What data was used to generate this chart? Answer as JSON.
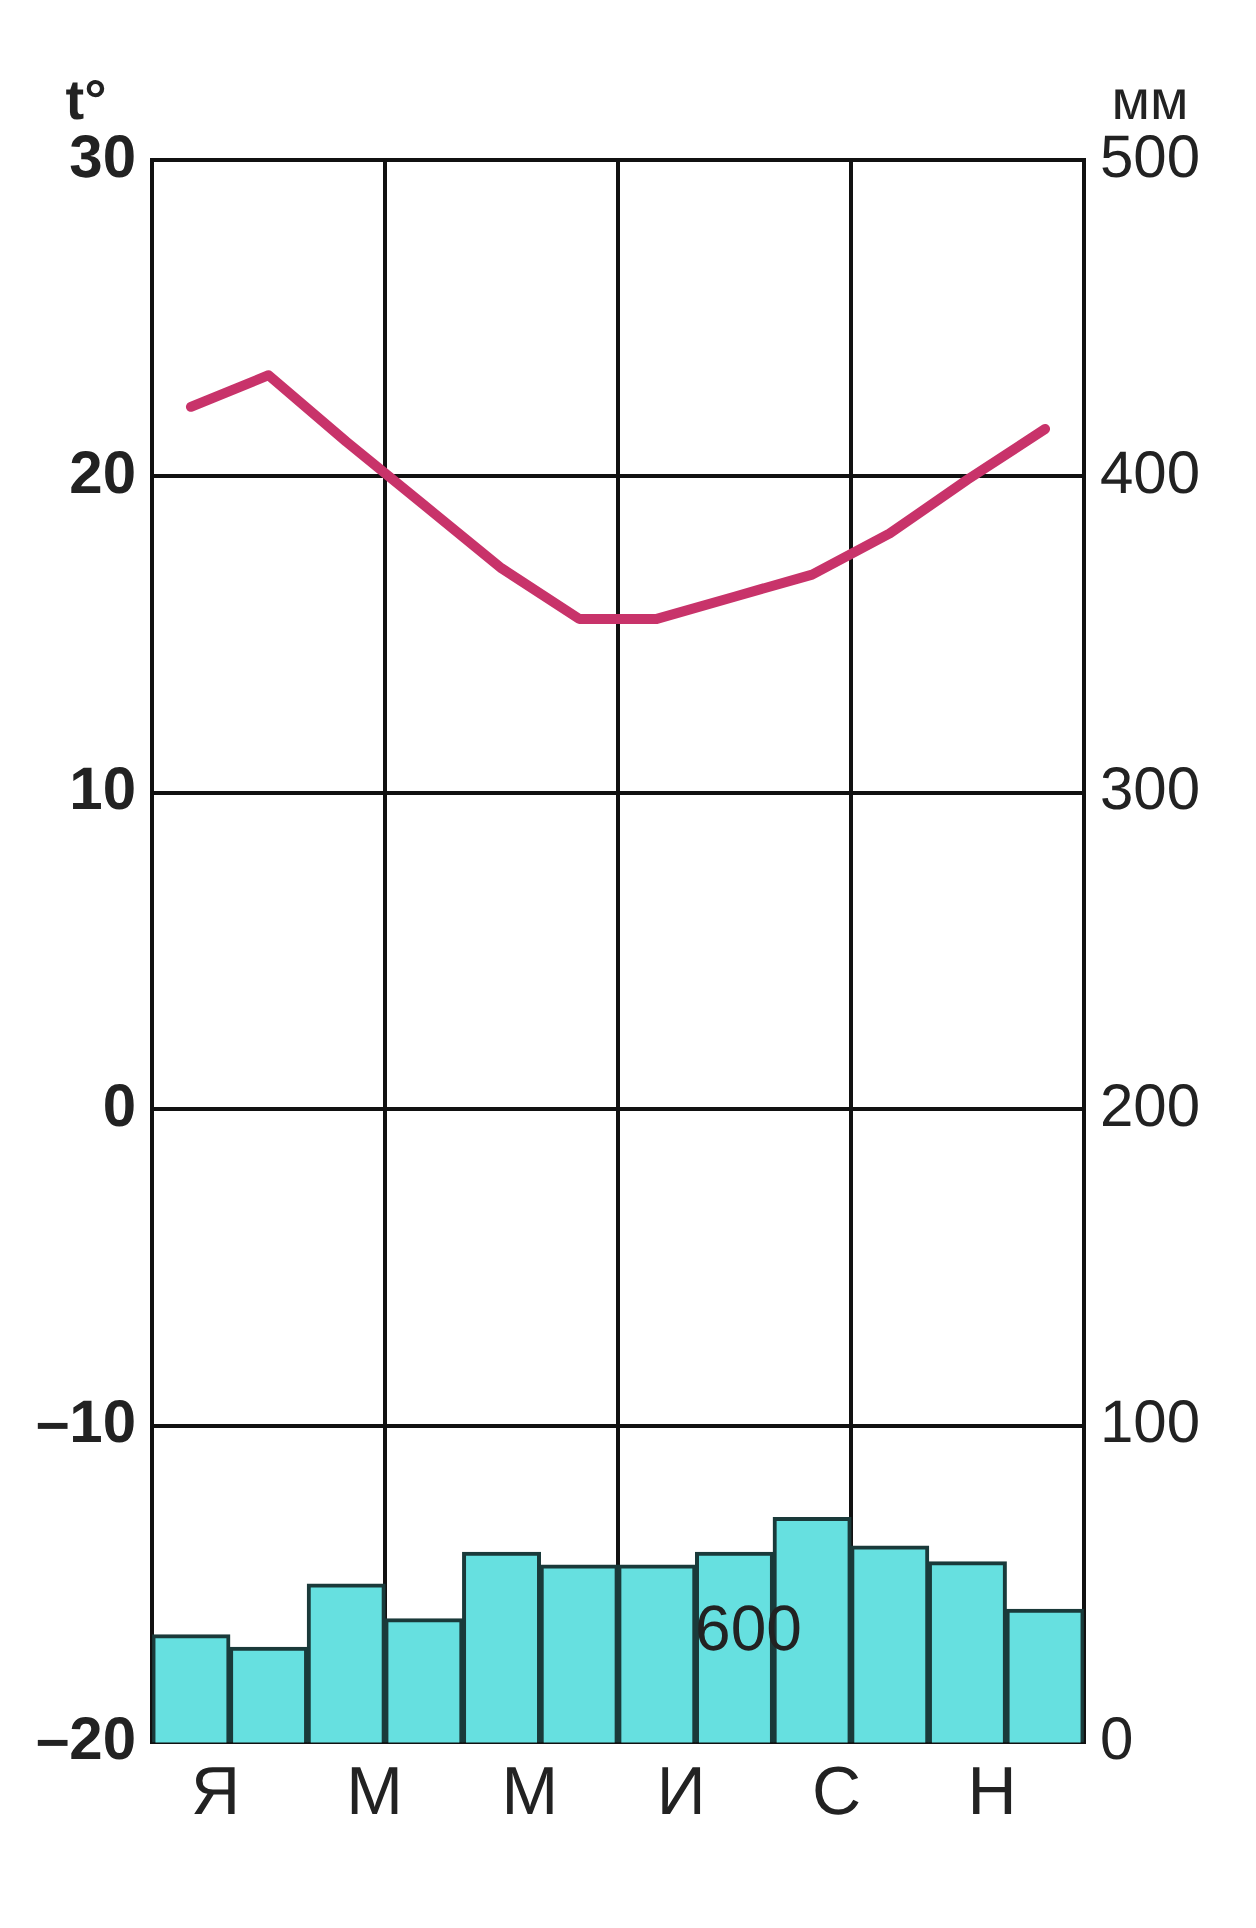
{
  "chart_data": {
    "type": "bar",
    "ylabel": "t°",
    "y2label": "мм",
    "categories": [
      "Я",
      null,
      "М",
      null,
      "М",
      null,
      "И",
      null,
      "С",
      null,
      "Н",
      null
    ],
    "series": [
      {
        "axis": "y2",
        "color": "#66e0e0",
        "values": [
          34,
          30,
          50,
          39,
          60,
          56,
          56,
          60,
          71,
          62,
          57,
          42
        ]
      },
      {
        "type": "line",
        "axis": "y",
        "color": "#c8336a",
        "values": [
          22.2,
          23.2,
          21.1,
          19.1,
          17.1,
          15.5,
          15.5,
          16.2,
          16.9,
          18.2,
          19.9,
          21.5
        ]
      }
    ],
    "ylim": [
      -20,
      30
    ],
    "yticks": [
      {
        "value": -20,
        "label": "–20"
      },
      {
        "value": -10,
        "label": "–10"
      },
      0,
      10,
      20,
      30
    ],
    "y2lim": [
      0,
      500
    ],
    "y2ticks": [
      0,
      100,
      200,
      300,
      400,
      500
    ],
    "annotations": [
      "600"
    ],
    "grid": true,
    "legend": false,
    "marker": "none",
    "line_style": "solid"
  }
}
